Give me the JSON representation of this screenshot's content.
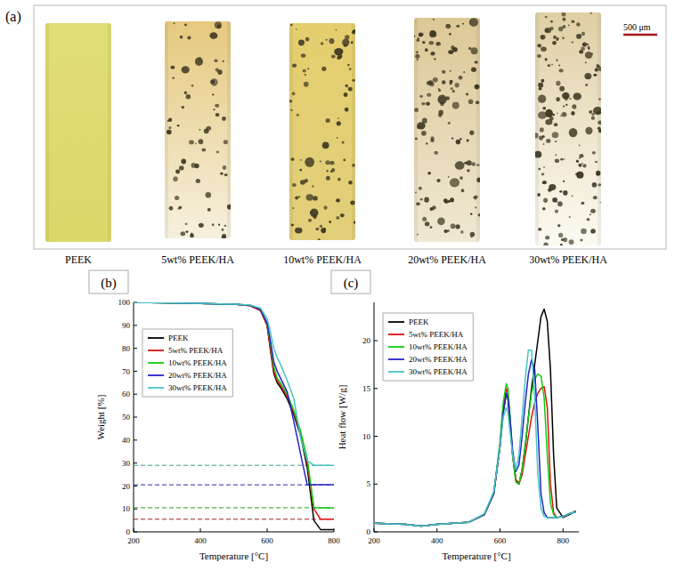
{
  "panel_a": {
    "panel_label": "(a)",
    "samples": [
      "PEEK",
      "5wt% PEEK/HA",
      "10wt% PEEK/HA",
      "20wt% PEEK/HA",
      "30wt% PEEK/HA"
    ],
    "scale_bar": "500 μm"
  },
  "chart_data": [
    {
      "type": "line",
      "panel_label": "(b)",
      "x_label": "Temperature [°C]",
      "y_label": "Weight [%]",
      "x": [
        200,
        300,
        400,
        500,
        550,
        580,
        600,
        610,
        620,
        630,
        640,
        660,
        680,
        700,
        720,
        740,
        760,
        780,
        800
      ],
      "xlim": [
        200,
        800
      ],
      "xticks": [
        200,
        400,
        600,
        800
      ],
      "ylim": [
        0,
        100
      ],
      "yticks": [
        0,
        10,
        20,
        30,
        40,
        50,
        60,
        70,
        80,
        90,
        100
      ],
      "legend": "center left",
      "series": [
        {
          "name": "PEEK",
          "color": "#000000",
          "values": [
            100,
            99.8,
            99.5,
            99.2,
            98.5,
            96.5,
            90,
            79,
            69,
            65,
            63,
            58,
            51,
            42,
            28,
            5,
            1,
            1,
            1
          ]
        },
        {
          "name": "5wt% PEEK/HA",
          "color": "#e01010",
          "values": [
            100,
            99.8,
            99.5,
            99.2,
            98.5,
            96.5,
            90,
            80,
            70,
            66,
            64,
            59,
            52,
            43,
            30,
            10,
            5.5,
            5.5,
            5.5
          ]
        },
        {
          "name": "10wt% PEEK/HA",
          "color": "#10cc10",
          "values": [
            100,
            99.8,
            99.5,
            99.2,
            98.7,
            97,
            91,
            82,
            72,
            67,
            65,
            60,
            53,
            44,
            32,
            10.5,
            10.5,
            10.5,
            10.5
          ]
        },
        {
          "name": "20wt% PEEK/HA",
          "color": "#2424c8",
          "values": [
            100,
            99.8,
            99.5,
            99.2,
            98.7,
            97,
            91,
            83,
            74,
            70,
            67,
            61,
            48,
            34,
            20.5,
            20.5,
            20.5,
            20.5,
            20.5
          ]
        },
        {
          "name": "30wt% PEEK/HA",
          "color": "#48c4c4",
          "values": [
            100,
            99.8,
            99.5,
            99.2,
            98.8,
            97.5,
            93,
            87,
            80,
            76,
            73,
            66,
            58,
            41,
            31,
            29,
            29,
            29,
            29
          ]
        }
      ],
      "reference_lines": [
        {
          "value": 29,
          "color": "#3a9c8c",
          "line_style": "dashed"
        },
        {
          "value": 20.5,
          "color": "#2a2aa0",
          "line_style": "dashed"
        },
        {
          "value": 10.5,
          "color": "#20a020",
          "line_style": "dashed"
        },
        {
          "value": 5.5,
          "color": "#a02020",
          "line_style": "dashed"
        }
      ]
    },
    {
      "type": "line",
      "panel_label": "(c)",
      "x_label": "Temperature [°C]",
      "y_label": "Heat flow [W/g]",
      "x": [
        200,
        300,
        350,
        400,
        500,
        550,
        580,
        600,
        610,
        620,
        625,
        630,
        640,
        650,
        660,
        670,
        680,
        690,
        700,
        710,
        720,
        730,
        740,
        750,
        760,
        770,
        780,
        800,
        820,
        840
      ],
      "xlim": [
        200,
        850
      ],
      "xticks": [
        200,
        400,
        600,
        800
      ],
      "ylim": [
        0,
        24
      ],
      "yticks": [
        0,
        5,
        10,
        15,
        20
      ],
      "legend": "upper left",
      "series": [
        {
          "name": "PEEK",
          "color": "#000000",
          "values": [
            0.9,
            0.8,
            0.6,
            0.8,
            1.0,
            1.8,
            4,
            9,
            12.5,
            14.5,
            14,
            12,
            8,
            5.5,
            5,
            6.5,
            9,
            12,
            15,
            17.5,
            20,
            22.5,
            23.3,
            22,
            17,
            8,
            2.5,
            1.5,
            1.8,
            2.2
          ]
        },
        {
          "name": "5wt% PEEK/HA",
          "color": "#e01010",
          "values": [
            0.9,
            0.8,
            0.6,
            0.8,
            1.0,
            1.8,
            4,
            9,
            13,
            15,
            14.5,
            12.5,
            8,
            5.5,
            5,
            6,
            8,
            10,
            12,
            13.5,
            14.5,
            15,
            15.2,
            13,
            5,
            2,
            1.5,
            1.6,
            1.9,
            2.1
          ]
        },
        {
          "name": "10wt% PEEK/HA",
          "color": "#10cc10",
          "values": [
            0.9,
            0.8,
            0.6,
            0.8,
            1.0,
            1.8,
            4,
            9.5,
            13.5,
            15.5,
            15,
            13,
            8,
            5.2,
            5,
            6.5,
            9,
            12,
            14.5,
            16,
            16.5,
            16.3,
            14,
            8,
            3,
            1.8,
            1.5,
            1.6,
            1.9,
            2.1
          ]
        },
        {
          "name": "20wt% PEEK/HA",
          "color": "#2424c8",
          "values": [
            0.9,
            0.8,
            0.6,
            0.8,
            1.0,
            1.8,
            4,
            9,
            12.5,
            14.5,
            14,
            12.5,
            8.5,
            6.3,
            7,
            10,
            13.5,
            16.5,
            18,
            17,
            11,
            4,
            2,
            1.5,
            1.5,
            1.5,
            1.5,
            1.6,
            1.9,
            2.1
          ]
        },
        {
          "name": "30wt% PEEK/HA",
          "color": "#48c4c4",
          "values": [
            0.9,
            0.8,
            0.6,
            0.8,
            1.0,
            1.9,
            4.2,
            9,
            12,
            13,
            12.5,
            11,
            8,
            6.5,
            8,
            12,
            16,
            19,
            19,
            14,
            6,
            2.5,
            1.6,
            1.5,
            1.5,
            1.5,
            1.5,
            1.6,
            1.9,
            2.1
          ]
        }
      ]
    }
  ]
}
